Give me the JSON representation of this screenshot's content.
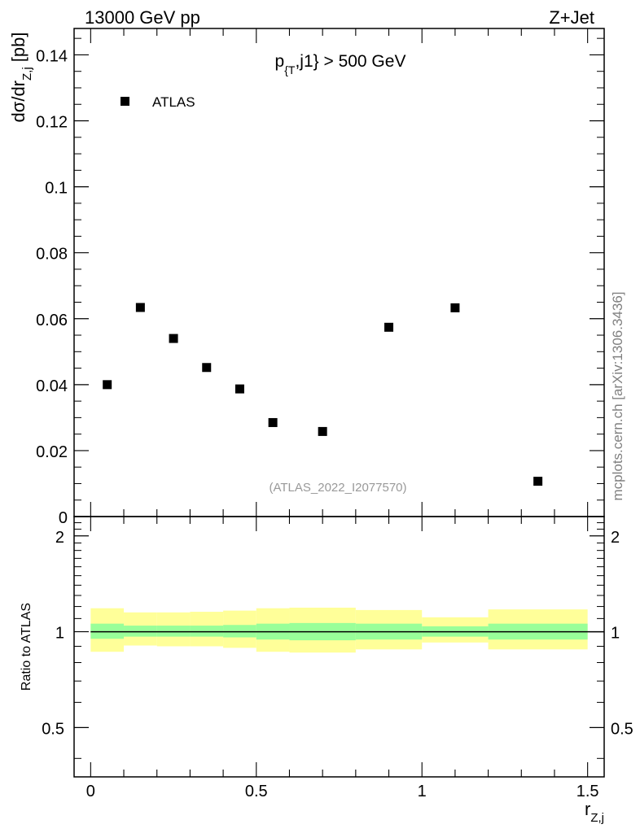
{
  "header": {
    "left": "13000 GeV pp",
    "right": "Z+Jet",
    "side": "mcplots.cern.ch [arXiv:1306.3436]"
  },
  "chart_data": [
    {
      "type": "scatter",
      "panel": "main",
      "title": "p_{T},j1} > 500 GeV",
      "ylabel": "dσ/dr_{Z,j} [pb]",
      "xlim": [
        -0.05,
        1.55
      ],
      "ylim": [
        0,
        0.148
      ],
      "yticks": [
        0,
        0.02,
        0.04,
        0.06,
        0.08,
        0.1,
        0.12,
        0.14
      ],
      "ytick_labels": [
        "0",
        "0.02",
        "0.04",
        "0.06",
        "0.08",
        "0.1",
        "0.12",
        "0.14"
      ],
      "legend_position": "top-left",
      "annotation": "(ATLAS_2022_I2077570)",
      "series": [
        {
          "name": "ATLAS",
          "color": "#000000",
          "x": [
            0.05,
            0.15,
            0.25,
            0.35,
            0.45,
            0.55,
            0.7,
            0.9,
            1.1,
            1.35
          ],
          "y": [
            0.04,
            0.0634,
            0.054,
            0.0452,
            0.0387,
            0.0285,
            0.0258,
            0.0574,
            0.0633,
            0.0107
          ]
        }
      ]
    },
    {
      "type": "area",
      "panel": "ratio",
      "ylabel": "Ratio to ATLAS",
      "xlabel": "r_{Z,j}",
      "xlim": [
        -0.05,
        1.55
      ],
      "ylim": [
        0.35,
        2.3
      ],
      "yticks": [
        0.5,
        1,
        2
      ],
      "ytick_labels": [
        "0.5",
        "1",
        "2"
      ],
      "xticks": [
        0,
        0.5,
        1,
        1.5
      ],
      "xtick_labels": [
        "0",
        "0.5",
        "1",
        "1.5"
      ],
      "reference_line": 1,
      "bins": [
        [
          0,
          0.1
        ],
        [
          0.1,
          0.2
        ],
        [
          0.2,
          0.3
        ],
        [
          0.3,
          0.4
        ],
        [
          0.4,
          0.5
        ],
        [
          0.5,
          0.6
        ],
        [
          0.6,
          0.8
        ],
        [
          0.8,
          1.0
        ],
        [
          1.0,
          1.2
        ],
        [
          1.2,
          1.5
        ]
      ],
      "inner_band": {
        "color": "#99ff99",
        "low": [
          0.95,
          0.965,
          0.965,
          0.965,
          0.96,
          0.945,
          0.94,
          0.945,
          0.965,
          0.945
        ],
        "high": [
          1.06,
          1.045,
          1.045,
          1.045,
          1.05,
          1.06,
          1.065,
          1.06,
          1.04,
          1.06
        ]
      },
      "outer_band": {
        "color": "#ffff99",
        "low": [
          0.865,
          0.905,
          0.9,
          0.9,
          0.89,
          0.865,
          0.86,
          0.88,
          0.925,
          0.88
        ],
        "high": [
          1.185,
          1.15,
          1.15,
          1.155,
          1.165,
          1.185,
          1.19,
          1.17,
          1.11,
          1.175
        ]
      }
    }
  ]
}
